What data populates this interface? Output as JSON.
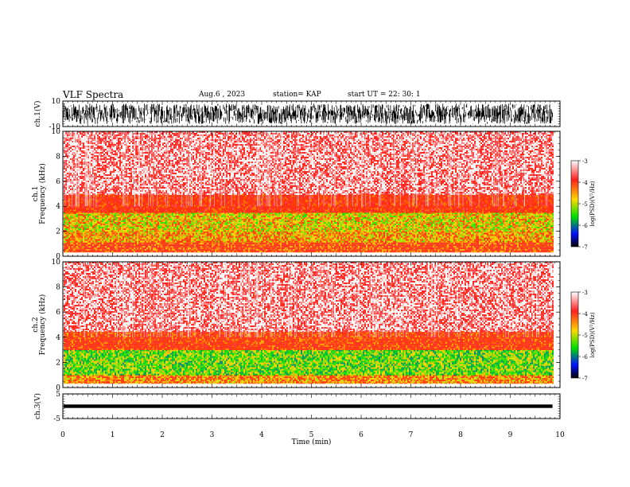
{
  "header": {
    "title": "VLF Spectra",
    "date": "Aug.6 , 2023",
    "station": "station= KAP",
    "start": "start UT = 22: 30: 1"
  },
  "colors": {
    "colorbar": [
      "#ffffff",
      "#ff0000",
      "#ffd800",
      "#00e000",
      "#0000ff",
      "#000000"
    ],
    "waveform": "#000000"
  },
  "chart_data": [
    {
      "type": "line",
      "panel": "waveform-ch1",
      "ylabel": "ch.1(V)",
      "ylim": [
        -10,
        10
      ],
      "yticks": [
        "10",
        "-10"
      ],
      "x_range_min": [
        0,
        9.85
      ],
      "description_values": {
        "typical_amplitude_V": [
          -8,
          8
        ]
      }
    },
    {
      "type": "heatmap",
      "panel": "spectrogram-ch1",
      "ylabel": "ch.1 Frequency (kHz)",
      "ylim": [
        0,
        10
      ],
      "yticks": [
        "0",
        "2",
        "4",
        "6",
        "8",
        "10"
      ],
      "x_range_min": [
        0,
        9.85
      ],
      "bands": [
        {
          "f_kHz": [
            0.3,
            1.2
          ],
          "log_psd": -4.2
        },
        {
          "f_kHz": [
            1.2,
            2.0
          ],
          "log_psd": -4.6
        },
        {
          "f_kHz": [
            2.0,
            3.5
          ],
          "log_psd": -4.8
        },
        {
          "f_kHz": [
            3.5,
            5.0
          ],
          "log_psd": -4.0
        },
        {
          "f_kHz": [
            5.0,
            10.0
          ],
          "log_psd": -3.3
        }
      ],
      "colorbar": {
        "label": "log(PSD)(V²/Hz)",
        "range": [
          -7,
          -3
        ],
        "ticks": [
          "-3",
          "-4",
          "-5",
          "-6",
          "-7"
        ]
      }
    },
    {
      "type": "heatmap",
      "panel": "spectrogram-ch2",
      "ylabel": "ch.2 Frequency (kHz)",
      "ylim": [
        0,
        10
      ],
      "yticks": [
        "0",
        "2",
        "4",
        "6",
        "8",
        "10"
      ],
      "x_range_min": [
        0,
        9.85
      ],
      "bands": [
        {
          "f_kHz": [
            0.3,
            1.0
          ],
          "log_psd": -4.5
        },
        {
          "f_kHz": [
            1.0,
            3.0
          ],
          "log_psd": -5.2
        },
        {
          "f_kHz": [
            3.0,
            4.5
          ],
          "log_psd": -4.1
        },
        {
          "f_kHz": [
            4.5,
            10.0
          ],
          "log_psd": -3.3
        }
      ],
      "colorbar": {
        "label": "log(PSD)(V²/Hz)",
        "range": [
          -7,
          -3
        ],
        "ticks": [
          "-3",
          "-4",
          "-5",
          "-6",
          "-7"
        ]
      }
    },
    {
      "type": "line",
      "panel": "waveform-ch3",
      "ylabel": "ch.3(V)",
      "ylim": [
        -5,
        5
      ],
      "yticks": [
        "5",
        "-5"
      ],
      "x_range_min": [
        0,
        9.85
      ],
      "description_values": {
        "typical_amplitude_V": [
          -0.7,
          0.7
        ]
      }
    },
    {
      "type": "axis",
      "panel": "time-axis",
      "xlabel": "Time (min)",
      "xlim": [
        0,
        10
      ],
      "xticks": [
        "0",
        "1",
        "2",
        "3",
        "4",
        "5",
        "6",
        "7",
        "8",
        "9",
        "10"
      ]
    }
  ]
}
